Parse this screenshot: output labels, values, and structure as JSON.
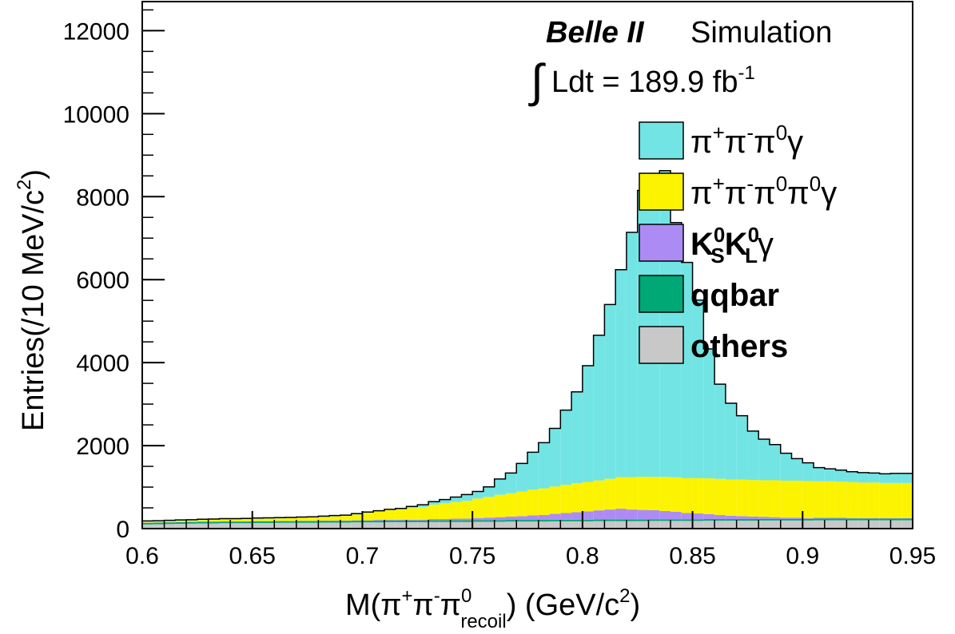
{
  "chart_data": {
    "type": "stacked_histogram",
    "experiment": "Belle II",
    "subtitle": "Simulation",
    "luminosity": {
      "prefix": "Ldt = 189.9 fb",
      "sup": "-1"
    },
    "xlabel": {
      "base": "M(π",
      "p_sup": "+",
      "pi2": "π",
      "m_sup": "-",
      "pi3": "π",
      "sub": "recoil",
      "sup0": "0",
      "tail": ") (GeV/c",
      "c2": "2",
      "end": ")"
    },
    "ylabel": {
      "base": "Entries(/10 MeV/c",
      "sup": "2",
      "end": ")"
    },
    "xlim": [
      0.6,
      0.95
    ],
    "ylim": [
      0,
      12700
    ],
    "xticks": [
      "0.6",
      "0.65",
      "0.7",
      "0.75",
      "0.8",
      "0.85",
      "0.9",
      "0.95"
    ],
    "yticks": [
      "0",
      "2000",
      "4000",
      "6000",
      "8000",
      "10000",
      "12000"
    ],
    "bin_width": 0.005,
    "bin_low_edges": [
      0.6,
      0.605,
      0.61,
      0.615,
      0.62,
      0.625,
      0.63,
      0.635,
      0.64,
      0.645,
      0.65,
      0.655,
      0.66,
      0.665,
      0.67,
      0.675,
      0.68,
      0.685,
      0.69,
      0.695,
      0.7,
      0.705,
      0.71,
      0.715,
      0.72,
      0.725,
      0.73,
      0.735,
      0.74,
      0.745,
      0.75,
      0.755,
      0.76,
      0.765,
      0.77,
      0.775,
      0.78,
      0.785,
      0.79,
      0.795,
      0.8,
      0.805,
      0.81,
      0.815,
      0.82,
      0.825,
      0.83,
      0.835,
      0.84,
      0.845,
      0.85,
      0.855,
      0.86,
      0.865,
      0.87,
      0.875,
      0.88,
      0.885,
      0.89,
      0.895,
      0.9,
      0.905,
      0.91,
      0.915,
      0.92,
      0.925,
      0.93,
      0.935,
      0.94,
      0.945
    ],
    "stack_order": [
      "others",
      "qqbar",
      "KSKLgamma",
      "pipipi0pi0gamma",
      "pipipi0gamma"
    ],
    "series": [
      {
        "id": "pipipi0gamma",
        "color": "#72e4e4",
        "values": [
          20,
          20,
          20,
          20,
          20,
          20,
          20,
          20,
          20,
          20,
          20,
          20,
          20,
          20,
          20,
          20,
          20,
          20,
          20,
          20,
          20,
          20,
          20,
          20,
          40,
          60,
          70,
          90,
          120,
          150,
          170,
          240,
          380,
          490,
          680,
          900,
          1100,
          1400,
          1800,
          2200,
          2800,
          3500,
          4200,
          5000,
          5900,
          6900,
          7100,
          7380,
          6140,
          5200,
          4290,
          3120,
          2280,
          1840,
          1540,
          1180,
          990,
          860,
          660,
          530,
          440,
          330,
          300,
          280,
          250,
          240,
          230,
          220,
          230,
          230
        ]
      },
      {
        "id": "pipipi0pi0gamma",
        "color": "#fbf300",
        "values": [
          20,
          20,
          25,
          30,
          30,
          35,
          40,
          45,
          45,
          50,
          55,
          60,
          60,
          65,
          70,
          75,
          85,
          100,
          110,
          140,
          180,
          200,
          230,
          250,
          280,
          300,
          350,
          380,
          400,
          430,
          470,
          500,
          540,
          560,
          590,
          620,
          640,
          660,
          680,
          700,
          710,
          720,
          740,
          760,
          780,
          800,
          800,
          820,
          830,
          840,
          850,
          860,
          870,
          870,
          880,
          880,
          880,
          890,
          890,
          890,
          890,
          880,
          880,
          870,
          870,
          860,
          860,
          850,
          850,
          850
        ]
      },
      {
        "id": "KSKLgamma",
        "color": "#ac8cf4",
        "values": [
          5,
          5,
          5,
          5,
          5,
          5,
          5,
          5,
          5,
          5,
          5,
          5,
          5,
          5,
          10,
          10,
          10,
          10,
          10,
          10,
          10,
          20,
          20,
          20,
          20,
          20,
          30,
          30,
          40,
          40,
          50,
          60,
          70,
          80,
          90,
          110,
          120,
          140,
          160,
          180,
          200,
          220,
          240,
          260,
          240,
          230,
          220,
          200,
          180,
          150,
          140,
          120,
          100,
          80,
          70,
          60,
          50,
          40,
          30,
          30,
          20,
          20,
          20,
          20,
          10,
          10,
          10,
          10,
          10,
          10
        ]
      },
      {
        "id": "qqbar",
        "color": "#00a876",
        "values": [
          40,
          40,
          40,
          40,
          40,
          40,
          40,
          40,
          40,
          40,
          40,
          40,
          40,
          40,
          40,
          40,
          40,
          40,
          40,
          40,
          40,
          40,
          40,
          40,
          40,
          40,
          40,
          40,
          40,
          40,
          40,
          40,
          40,
          40,
          40,
          40,
          40,
          40,
          40,
          40,
          40,
          40,
          40,
          40,
          40,
          40,
          40,
          40,
          40,
          40,
          40,
          40,
          40,
          40,
          40,
          40,
          40,
          40,
          40,
          40,
          40,
          40,
          40,
          40,
          40,
          40,
          40,
          40,
          40,
          40
        ]
      },
      {
        "id": "others",
        "color": "#c8c8c8",
        "values": [
          100,
          105,
          110,
          115,
          120,
          125,
          125,
          130,
          130,
          130,
          135,
          135,
          140,
          140,
          140,
          140,
          145,
          145,
          145,
          150,
          150,
          150,
          155,
          155,
          155,
          155,
          160,
          160,
          160,
          160,
          165,
          165,
          165,
          170,
          170,
          170,
          170,
          175,
          175,
          175,
          175,
          180,
          180,
          180,
          180,
          180,
          185,
          185,
          185,
          185,
          185,
          190,
          190,
          190,
          190,
          190,
          195,
          195,
          195,
          195,
          195,
          200,
          200,
          200,
          200,
          200,
          200,
          200,
          200,
          200
        ]
      }
    ],
    "legend": {
      "placement": "top-right",
      "entries": [
        {
          "id": "pipipi0gamma",
          "color": "#72e4e4",
          "parts": [
            [
              "π",
              ""
            ],
            [
              "+",
              "sup"
            ],
            [
              "π",
              ""
            ],
            [
              "-",
              "sup"
            ],
            [
              "π",
              ""
            ],
            [
              "0",
              "sup"
            ],
            [
              "γ",
              ""
            ]
          ]
        },
        {
          "id": "pipipi0pi0gamma",
          "color": "#fbf300",
          "parts": [
            [
              "π",
              ""
            ],
            [
              "+",
              "sup"
            ],
            [
              "π",
              ""
            ],
            [
              "-",
              "sup"
            ],
            [
              "π",
              ""
            ],
            [
              "0",
              "sup"
            ],
            [
              "π",
              ""
            ],
            [
              "0",
              "sup"
            ],
            [
              "γ",
              ""
            ]
          ]
        },
        {
          "id": "KSKLgamma",
          "color": "#ac8cf4",
          "parts": [
            [
              "K",
              "b"
            ],
            [
              "0",
              "bsup"
            ],
            [
              "S",
              "bsub"
            ],
            [
              "K",
              "b"
            ],
            [
              "0",
              "bsup"
            ],
            [
              "L",
              "bsub"
            ],
            [
              "γ",
              ""
            ]
          ]
        },
        {
          "id": "qqbar",
          "color": "#00a876",
          "parts": [
            [
              "qqbar",
              "b"
            ]
          ]
        },
        {
          "id": "others",
          "color": "#c8c8c8",
          "parts": [
            [
              "others",
              "b"
            ]
          ]
        }
      ]
    }
  }
}
